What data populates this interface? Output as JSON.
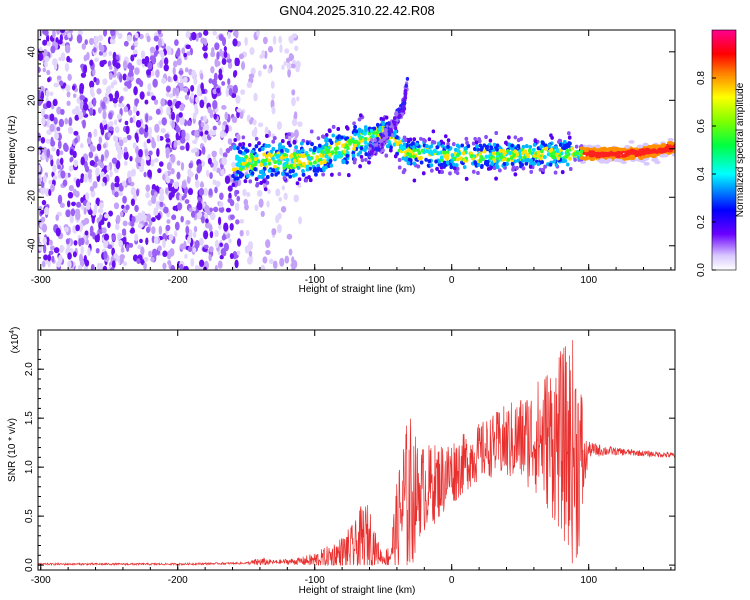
{
  "title": "GN04.2025.310.22.42.R08",
  "colors": {
    "signal": "#e8302f",
    "scatter_bg": "#9a6cf0",
    "axis": "#000000"
  },
  "chart_data": [
    {
      "type": "heatmap",
      "name": "spectrogram",
      "xlabel": "Height of straight line (km)",
      "ylabel": "Frequency (Hz)",
      "xlim": [
        -302,
        163
      ],
      "ylim": [
        -50,
        49
      ],
      "xticks": [
        -300,
        -200,
        -100,
        0,
        100
      ],
      "xtick_labels": [
        "-300",
        "-200",
        "-100",
        "0",
        "100"
      ],
      "yticks": [
        -40,
        -20,
        0,
        20,
        40
      ],
      "ytick_labels": [
        "-40",
        "-20",
        "0",
        "20",
        "40"
      ],
      "colorbar": {
        "label": "Normalized spectral amplitude",
        "range": [
          0,
          1
        ],
        "ticks": [
          0.0,
          0.2,
          0.4,
          0.6,
          0.8
        ],
        "tick_labels": [
          "0.0",
          "0.2",
          "0.4",
          "0.6",
          "0.8"
        ],
        "colormap": [
          "#ffffff",
          "#5500ff",
          "#0000ff",
          "#00ffff",
          "#00ff00",
          "#ffff00",
          "#ff7f00",
          "#ff0000",
          "#ff0080"
        ]
      },
      "trace": {
        "x": [
          -155,
          -140,
          -120,
          -100,
          -80,
          -70,
          -60,
          -50,
          -40,
          -35,
          -30,
          -20,
          0,
          20,
          40,
          60,
          80,
          90,
          110,
          130,
          150,
          163
        ],
        "freq": [
          -6,
          -5,
          -5,
          -4,
          0,
          3,
          5,
          7,
          2,
          -1,
          -2,
          -2,
          -3,
          -3,
          -3,
          -2,
          -2,
          -2,
          -2,
          -2,
          -1,
          1
        ]
      },
      "branch": {
        "x": [
          -60,
          -50,
          -45,
          -40,
          -35,
          -32
        ],
        "freq": [
          -2,
          4,
          8,
          12,
          18,
          30
        ]
      }
    },
    {
      "type": "line",
      "name": "snr",
      "xlabel": "Height of straight line (km)",
      "ylabel": "SNR (10 * v/v)",
      "multiplier": "(x10",
      "multiplier_exp": "4",
      "xlim": [
        -302,
        163
      ],
      "ylim": [
        -0.05,
        2.4
      ],
      "xticks": [
        -300,
        -200,
        -100,
        0,
        100
      ],
      "xtick_labels": [
        "-300",
        "-200",
        "-100",
        "0",
        "100"
      ],
      "yticks": [
        0.0,
        0.5,
        1.0,
        1.5,
        2.0
      ],
      "ytick_labels": [
        "0.0",
        "0.5",
        "1.0",
        "1.5",
        "2.0"
      ],
      "envelope": {
        "x": [
          -302,
          -250,
          -200,
          -150,
          -140,
          -130,
          -110,
          -100,
          -90,
          -80,
          -70,
          -65,
          -60,
          -55,
          -50,
          -45,
          -40,
          -35,
          -30,
          -25,
          -20,
          -10,
          0,
          10,
          20,
          30,
          40,
          50,
          60,
          70,
          80,
          85,
          90,
          95,
          97,
          100,
          120,
          140,
          163
        ],
        "mean": [
          0.01,
          0.01,
          0.01,
          0.02,
          0.03,
          0.03,
          0.04,
          0.05,
          0.08,
          0.12,
          0.18,
          0.25,
          0.3,
          0.15,
          0.06,
          0.1,
          0.4,
          0.65,
          0.7,
          0.75,
          0.78,
          0.85,
          0.95,
          1.05,
          1.15,
          1.22,
          1.25,
          1.28,
          1.3,
          1.3,
          1.25,
          1.2,
          1.15,
          1.05,
          1.02,
          1.18,
          1.16,
          1.14,
          1.12
        ],
        "amp": [
          0.01,
          0.01,
          0.01,
          0.01,
          0.05,
          0.02,
          0.04,
          0.08,
          0.12,
          0.18,
          0.28,
          0.4,
          0.32,
          0.15,
          0.05,
          0.15,
          0.45,
          0.75,
          0.85,
          0.5,
          0.45,
          0.4,
          0.35,
          0.3,
          0.3,
          0.32,
          0.4,
          0.45,
          0.55,
          0.75,
          0.95,
          1.1,
          1.2,
          0.8,
          0.3,
          0.08,
          0.04,
          0.03,
          0.03
        ]
      }
    }
  ]
}
